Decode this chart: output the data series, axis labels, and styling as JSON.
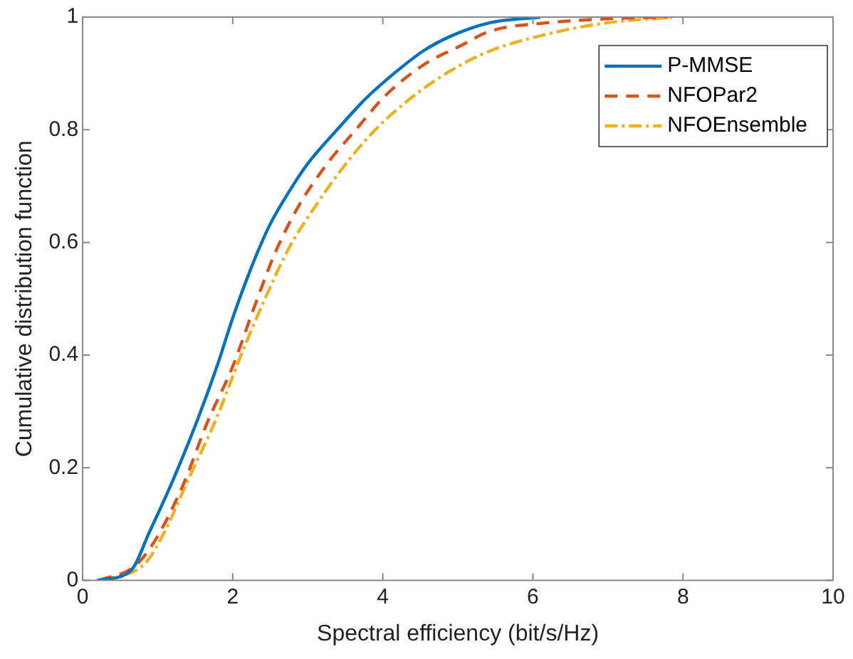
{
  "chart_data": {
    "type": "line",
    "xlabel": "Spectral efficiency (bit/s/Hz)",
    "ylabel": "Cumulative distribution function",
    "xlim": [
      0,
      10
    ],
    "xticks": [
      0,
      2,
      4,
      6,
      8,
      10
    ],
    "ylim": [
      0,
      1
    ],
    "yticks": [
      0,
      0.2,
      0.4,
      0.6,
      0.8,
      1
    ],
    "grid": false,
    "legend": "top right",
    "marker": "none",
    "series": [
      {
        "name": "P-MMSE",
        "color": "#0072bd",
        "line_style": "solid",
        "x": [
          0.19,
          0.64,
          0.89,
          1.21,
          1.53,
          1.79,
          2.0,
          2.24,
          2.49,
          2.75,
          3.0,
          3.39,
          3.77,
          4.15,
          4.54,
          4.92,
          5.43,
          6.1
        ],
        "values": [
          0,
          0.017,
          0.086,
          0.18,
          0.285,
          0.38,
          0.466,
          0.553,
          0.63,
          0.69,
          0.74,
          0.8,
          0.855,
          0.9,
          0.94,
          0.967,
          0.99,
          1
        ]
      },
      {
        "name": "NFOPar2",
        "color": "#d95319",
        "line_style": "dashed",
        "x": [
          0.22,
          0.7,
          0.96,
          1.34,
          1.66,
          2.0,
          2.3,
          2.56,
          2.88,
          3.26,
          3.64,
          4.03,
          4.54,
          5.05,
          5.43,
          6.2,
          7.0,
          7.8
        ],
        "values": [
          0,
          0.026,
          0.07,
          0.17,
          0.28,
          0.38,
          0.49,
          0.58,
          0.665,
          0.74,
          0.8,
          0.86,
          0.915,
          0.95,
          0.975,
          0.99,
          0.997,
          1
        ]
      },
      {
        "name": "NFOEnsemble",
        "color": "#edb120",
        "line_style": "dashdot",
        "x": [
          0.26,
          0.83,
          1.09,
          1.41,
          1.79,
          2.11,
          2.43,
          2.75,
          3.13,
          3.51,
          3.9,
          4.41,
          4.92,
          5.43,
          6.2,
          7.0,
          7.9
        ],
        "values": [
          0,
          0.03,
          0.086,
          0.18,
          0.29,
          0.4,
          0.5,
          0.59,
          0.67,
          0.74,
          0.8,
          0.86,
          0.906,
          0.94,
          0.97,
          0.99,
          1
        ]
      }
    ]
  }
}
